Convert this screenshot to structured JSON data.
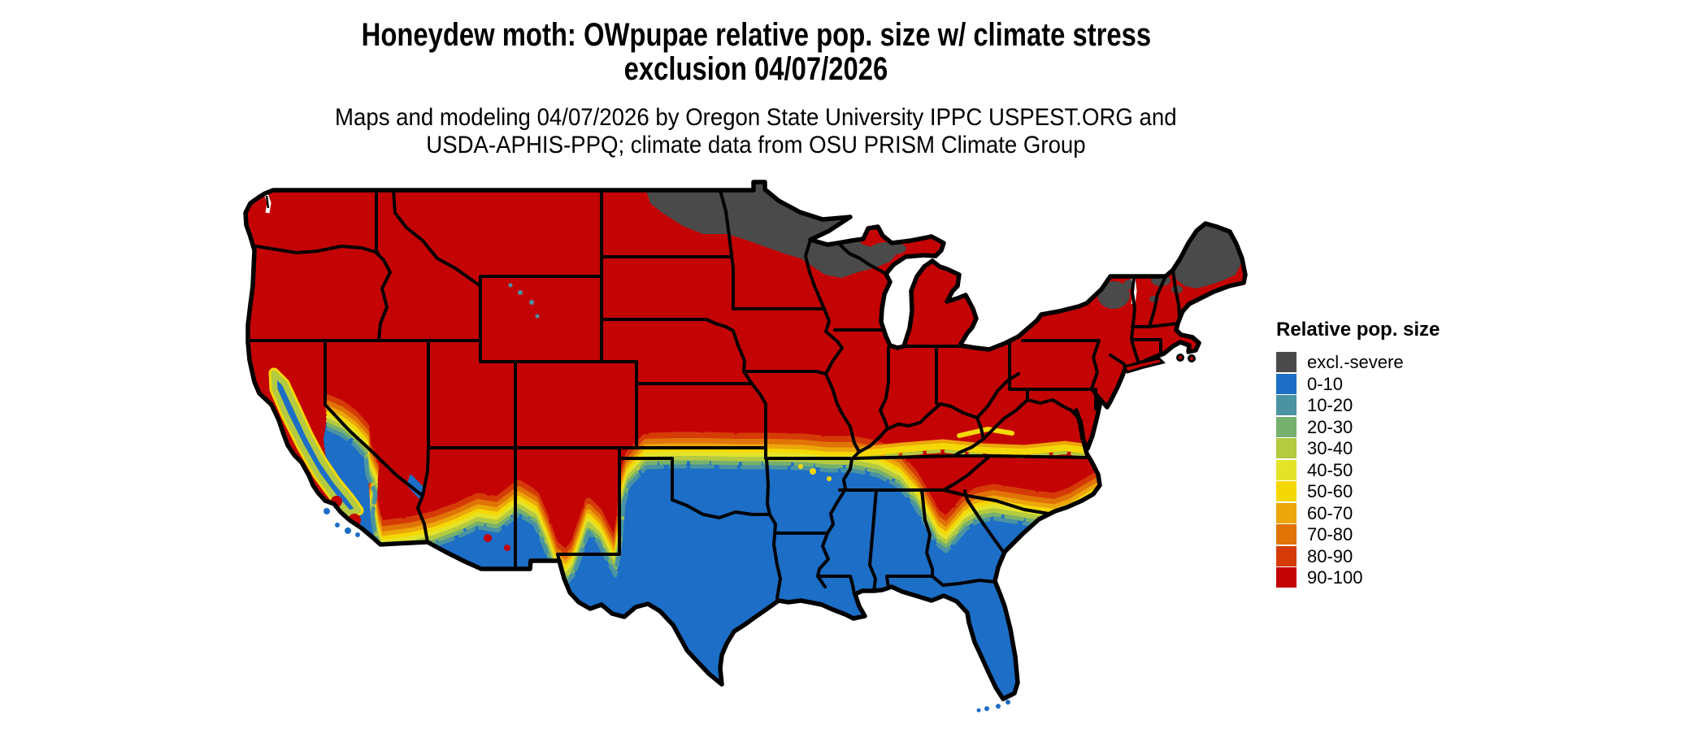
{
  "header": {
    "title_line1": "Honeydew moth: OWpupae relative pop. size w/ climate stress",
    "title_line2": "exclusion 04/07/2026",
    "subtitle_line1": "Maps and modeling 04/07/2026 by Oregon State University IPPC USPEST.ORG and",
    "subtitle_line2": "USDA-APHIS-PPQ; climate data from OSU PRISM Climate Group"
  },
  "legend": {
    "title": "Relative pop. size",
    "items": [
      {
        "label": "excl.-severe",
        "color": "#4a4a4a"
      },
      {
        "label": "0-10",
        "color": "#1c6ec6"
      },
      {
        "label": "10-20",
        "color": "#4a93a2"
      },
      {
        "label": "20-30",
        "color": "#76b06e"
      },
      {
        "label": "30-40",
        "color": "#b3ca41"
      },
      {
        "label": "40-50",
        "color": "#e4e32a"
      },
      {
        "label": "50-60",
        "color": "#f4d805"
      },
      {
        "label": "60-70",
        "color": "#eca60a"
      },
      {
        "label": "70-80",
        "color": "#e17406"
      },
      {
        "label": "80-90",
        "color": "#d53b07"
      },
      {
        "label": "90-100",
        "color": "#c40404"
      }
    ]
  },
  "map": {
    "area": "contiguous United States",
    "fill_by_region": {
      "north_and_central": "90-100",
      "far_north_border_minnesota_wisconsin_and_northern_maine": "excl.-severe",
      "south_from_california_through_texas_to_carolinas_and_florida": "0-10",
      "transition_belt": "10-20 through 80-90 bands between red north and blue south"
    }
  }
}
